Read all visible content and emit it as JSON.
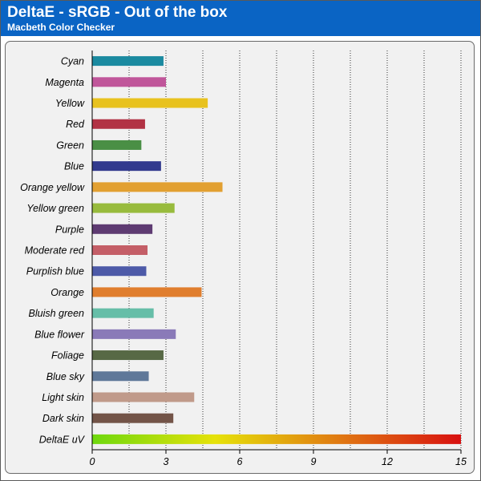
{
  "header": {
    "title": "DeltaE - sRGB - Out of the box",
    "subtitle": "Macbeth Color Checker"
  },
  "colors": {
    "header_bg": "#0a64c4",
    "plot_bg": "#f1f1f1"
  },
  "chart_data": {
    "type": "bar",
    "orientation": "horizontal",
    "title": "DeltaE - sRGB - Out of the box",
    "subtitle": "Macbeth Color Checker",
    "xlim": [
      0,
      15
    ],
    "xticks": [
      0,
      3,
      6,
      9,
      12,
      15
    ],
    "grid": "vertical dotted",
    "categories": [
      "Cyan",
      "Magenta",
      "Yellow",
      "Red",
      "Green",
      "Blue",
      "Orange yellow",
      "Yellow green",
      "Purple",
      "Moderate red",
      "Purplish blue",
      "Orange",
      "Bluish green",
      "Blue flower",
      "Foliage",
      "Blue sky",
      "Light skin",
      "Dark skin",
      "DeltaE uV"
    ],
    "values": [
      2.9,
      3.0,
      4.7,
      2.15,
      2.0,
      2.8,
      5.3,
      3.35,
      2.45,
      2.25,
      2.2,
      4.45,
      2.5,
      3.4,
      2.9,
      2.3,
      4.15,
      3.3,
      15
    ],
    "bar_colors": [
      "#1b8aa0",
      "#c0569a",
      "#e8c21e",
      "#b23244",
      "#4a8f45",
      "#323a8e",
      "#e2a031",
      "#98bb3d",
      "#5e3b72",
      "#c45e67",
      "#4d5aa8",
      "#e07e2e",
      "#66bea8",
      "#8a7ab8",
      "#576945",
      "#5f7899",
      "#c09a8a",
      "#735448",
      "gradient"
    ],
    "gradient_stops": [
      "#6ed80e",
      "#e6e20a",
      "#e07a12",
      "#d81010"
    ]
  }
}
